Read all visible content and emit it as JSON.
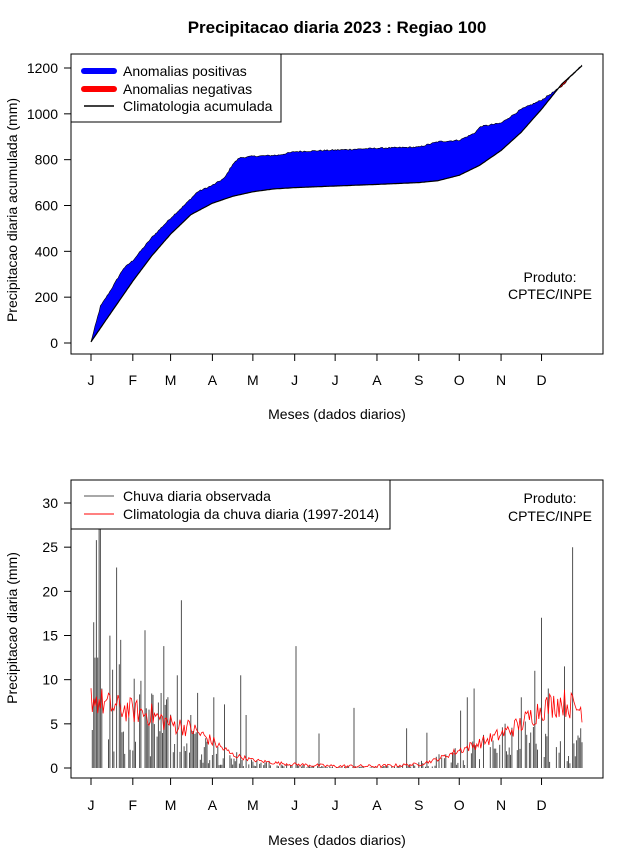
{
  "title": "Precipitacao diaria 2023 : Regiao 100",
  "months": [
    "J",
    "F",
    "M",
    "A",
    "M",
    "J",
    "J",
    "A",
    "S",
    "O",
    "N",
    "D"
  ],
  "product_note": [
    "Produto:",
    "CPTEC/INPE"
  ],
  "chart_data": [
    {
      "type": "area",
      "title": "Precipitacao diaria 2023 : Regiao 100",
      "xlabel": "Meses (dados diarios)",
      "ylabel": "Precipitacao diaria acumulada (mm)",
      "xlim": [
        1,
        365
      ],
      "ylim": [
        0,
        1200
      ],
      "yticks": [
        0,
        200,
        400,
        600,
        800,
        1000,
        1200
      ],
      "legend_position": "top-left",
      "legend": [
        "Anomalias positivas",
        "Anomalias negativas",
        "Climatologia acumulada"
      ],
      "colors": {
        "positive": "#0000ff",
        "negative": "#ff0000",
        "climatology": "#000000"
      },
      "climatology_knots": {
        "day": [
          1,
          15,
          32,
          46,
          60,
          75,
          91,
          106,
          121,
          136,
          152,
          182,
          213,
          244,
          258,
          274,
          289,
          305,
          320,
          335,
          350,
          365
        ],
        "value": [
          5,
          125,
          270,
          380,
          475,
          560,
          610,
          640,
          660,
          672,
          678,
          685,
          692,
          700,
          708,
          732,
          775,
          840,
          920,
          1020,
          1130,
          1210
        ]
      },
      "observed_knots": {
        "day": [
          1,
          8,
          15,
          25,
          32,
          46,
          60,
          70,
          80,
          91,
          100,
          106,
          111,
          121,
          140,
          152,
          182,
          213,
          244,
          258,
          274,
          285,
          290,
          305,
          320,
          335,
          350,
          365
        ],
        "value": [
          5,
          160,
          225,
          325,
          360,
          460,
          545,
          600,
          660,
          688,
          720,
          780,
          808,
          815,
          820,
          835,
          842,
          850,
          855,
          878,
          885,
          915,
          945,
          960,
          1020,
          1060,
          1120,
          1215
        ]
      }
    },
    {
      "type": "bar",
      "xlabel": "Meses (dados diarios)",
      "ylabel": "Precipitacao diaria (mm)",
      "xlim": [
        1,
        365
      ],
      "ylim": [
        0,
        30
      ],
      "yticks": [
        0,
        5,
        10,
        15,
        20,
        25,
        30
      ],
      "legend_position": "top-left",
      "legend": [
        "Chuva diaria observada",
        "Climatologia da chuva diaria (1997-2014)"
      ],
      "colors": {
        "observed": "#505050",
        "climatology": "#ff0000"
      },
      "observed_daily_envelope": {
        "day": [
          1,
          15,
          32,
          60,
          91,
          121,
          152,
          182,
          213,
          244,
          274,
          305,
          335,
          365
        ],
        "mean_mm": [
          6.5,
          9.0,
          6.0,
          4.5,
          1.8,
          0.6,
          0.2,
          0.1,
          0.1,
          0.4,
          1.5,
          2.8,
          3.2,
          2.0
        ]
      },
      "observed_peaks": [
        {
          "day": 2,
          "mm": 4.3
        },
        {
          "day": 3,
          "mm": 16.5
        },
        {
          "day": 4,
          "mm": 12.5
        },
        {
          "day": 5,
          "mm": 25.8
        },
        {
          "day": 6,
          "mm": 12.5
        },
        {
          "day": 7,
          "mm": 27.5
        },
        {
          "day": 8,
          "mm": 29.5
        },
        {
          "day": 9,
          "mm": 9.0
        },
        {
          "day": 20,
          "mm": 22.7
        },
        {
          "day": 23,
          "mm": 14.5
        },
        {
          "day": 41,
          "mm": 15.6
        },
        {
          "day": 55,
          "mm": 13.8
        },
        {
          "day": 65,
          "mm": 10.5
        },
        {
          "day": 68,
          "mm": 19.0
        },
        {
          "day": 75,
          "mm": 6.0
        },
        {
          "day": 80,
          "mm": 8.5
        },
        {
          "day": 92,
          "mm": 8.0
        },
        {
          "day": 100,
          "mm": 7.2
        },
        {
          "day": 112,
          "mm": 10.5
        },
        {
          "day": 116,
          "mm": 6.0
        },
        {
          "day": 153,
          "mm": 13.8
        },
        {
          "day": 170,
          "mm": 3.9
        },
        {
          "day": 196,
          "mm": 6.8
        },
        {
          "day": 235,
          "mm": 4.5
        },
        {
          "day": 250,
          "mm": 4.0
        },
        {
          "day": 275,
          "mm": 6.5
        },
        {
          "day": 280,
          "mm": 8.0
        },
        {
          "day": 285,
          "mm": 9.0
        },
        {
          "day": 320,
          "mm": 8.0
        },
        {
          "day": 330,
          "mm": 11.0
        },
        {
          "day": 335,
          "mm": 17.0
        },
        {
          "day": 340,
          "mm": 9.0
        },
        {
          "day": 352,
          "mm": 11.5
        },
        {
          "day": 358,
          "mm": 25.0
        },
        {
          "day": 364,
          "mm": 4.5
        }
      ],
      "climatology_knots": {
        "day": [
          1,
          15,
          32,
          46,
          60,
          75,
          91,
          106,
          121,
          136,
          152,
          182,
          213,
          244,
          258,
          274,
          289,
          305,
          320,
          335,
          350,
          365
        ],
        "mm": [
          8.0,
          7.0,
          6.5,
          6.0,
          5.0,
          4.5,
          3.0,
          1.5,
          0.9,
          0.6,
          0.4,
          0.2,
          0.2,
          0.4,
          1.0,
          2.0,
          2.8,
          3.8,
          5.0,
          6.8,
          7.5,
          6.6
        ]
      }
    }
  ]
}
